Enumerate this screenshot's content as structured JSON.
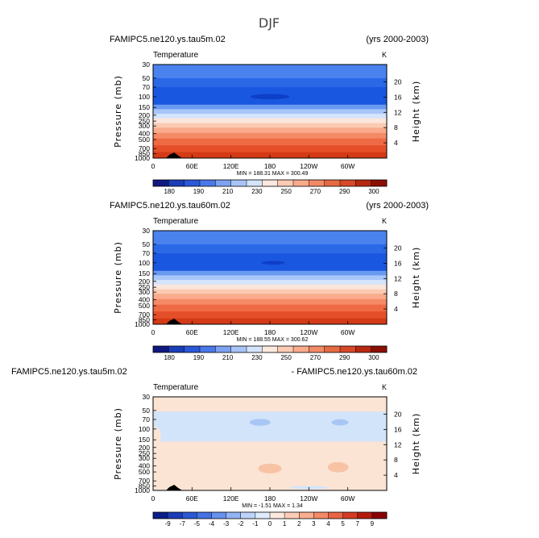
{
  "figure_title": "DJF",
  "panels": [
    {
      "left_title": "FAMIPC5.ne120.ys.tau5m.02",
      "right_title": "(yrs 2000-2003)",
      "var_label": "Temperature",
      "units": "K",
      "stats": "MIN = 188.31   MAX = 300.49"
    },
    {
      "left_title": "FAMIPC5.ne120.ys.tau60m.02",
      "right_title": "(yrs 2000-2003)",
      "var_label": "Temperature",
      "units": "K",
      "stats": "MIN = 188.55   MAX = 300.62"
    },
    {
      "left_title": "FAMIPC5.ne120.ys.tau5m.02",
      "right_title": "- FAMIPC5.ne120.ys.tau60m.02",
      "var_label": "Temperature",
      "units": "K",
      "stats": "MIN = -1.51   MAX = 1.34"
    }
  ],
  "chart_data": [
    {
      "type": "heatmap",
      "title": "FAMIPC5.ne120.ys.tau5m.02",
      "xlabel": "",
      "ylabel": "Pressure (mb)",
      "ylabel_right": "Height (km)",
      "x_ticks": [
        "0",
        "60E",
        "120E",
        "180",
        "120W",
        "60W"
      ],
      "x_tick_lon": [
        0,
        60,
        120,
        180,
        240,
        300
      ],
      "xlim": [
        0,
        360
      ],
      "y_ticks": [
        "30",
        "50",
        "70",
        "100",
        "150",
        "200",
        "250",
        "300",
        "400",
        "500",
        "700",
        "850",
        "1000"
      ],
      "y_tick_p": [
        30,
        50,
        70,
        100,
        150,
        200,
        250,
        300,
        400,
        500,
        700,
        850,
        1000
      ],
      "ylim_mb": [
        1000,
        30
      ],
      "right_ticks": [
        "4",
        "8",
        "12",
        "16",
        "20"
      ],
      "right_tick_km": [
        4,
        8,
        12,
        16,
        20
      ],
      "levels": [
        180,
        190,
        210,
        230,
        250,
        270,
        290,
        300
      ],
      "level_labels": [
        "180",
        "190",
        "210",
        "230",
        "250",
        "270",
        "290",
        "300"
      ],
      "min": 188.31,
      "max": 300.49,
      "bands": [
        {
          "p_top": 30,
          "p_bot": 50,
          "color": "#4a82ee"
        },
        {
          "p_top": 50,
          "p_bot": 70,
          "color": "#2a68e6"
        },
        {
          "p_top": 70,
          "p_bot": 135,
          "color": "#1a57e0"
        },
        {
          "p_top": 135,
          "p_bot": 160,
          "color": "#6a9af0"
        },
        {
          "p_top": 160,
          "p_bot": 190,
          "color": "#a8c6f8"
        },
        {
          "p_top": 190,
          "p_bot": 225,
          "color": "#d4e4fc"
        },
        {
          "p_top": 225,
          "p_bot": 270,
          "color": "#fbe6dc"
        },
        {
          "p_top": 270,
          "p_bot": 320,
          "color": "#fbcab2"
        },
        {
          "p_top": 320,
          "p_bot": 390,
          "color": "#f9ab8c"
        },
        {
          "p_top": 390,
          "p_bot": 480,
          "color": "#f58a66"
        },
        {
          "p_top": 480,
          "p_bot": 620,
          "color": "#ee6a44"
        },
        {
          "p_top": 620,
          "p_bot": 800,
          "color": "#e44f2a"
        },
        {
          "p_top": 800,
          "p_bot": 1000,
          "color": "#d43a16"
        }
      ],
      "features": [
        {
          "lon": 180,
          "p": 100,
          "lon_halfwidth": 30,
          "p_halfrange": 10,
          "color": "#0d3fc8"
        }
      ],
      "topography_lon": [
        20,
        45
      ]
    },
    {
      "type": "heatmap",
      "title": "FAMIPC5.ne120.ys.tau60m.02",
      "xlabel": "",
      "ylabel": "Pressure (mb)",
      "ylabel_right": "Height (km)",
      "x_ticks": [
        "0",
        "60E",
        "120E",
        "180",
        "120W",
        "60W"
      ],
      "x_tick_lon": [
        0,
        60,
        120,
        180,
        240,
        300
      ],
      "xlim": [
        0,
        360
      ],
      "y_ticks": [
        "30",
        "50",
        "70",
        "100",
        "150",
        "200",
        "250",
        "300",
        "400",
        "500",
        "700",
        "850",
        "1000"
      ],
      "y_tick_p": [
        30,
        50,
        70,
        100,
        150,
        200,
        250,
        300,
        400,
        500,
        700,
        850,
        1000
      ],
      "ylim_mb": [
        1000,
        30
      ],
      "right_ticks": [
        "4",
        "8",
        "12",
        "16",
        "20"
      ],
      "right_tick_km": [
        4,
        8,
        12,
        16,
        20
      ],
      "levels": [
        180,
        190,
        210,
        230,
        250,
        270,
        290,
        300
      ],
      "level_labels": [
        "180",
        "190",
        "210",
        "230",
        "250",
        "270",
        "290",
        "300"
      ],
      "min": 188.55,
      "max": 300.62,
      "bands": [
        {
          "p_top": 30,
          "p_bot": 50,
          "color": "#4a82ee"
        },
        {
          "p_top": 50,
          "p_bot": 70,
          "color": "#2a68e6"
        },
        {
          "p_top": 70,
          "p_bot": 135,
          "color": "#1a57e0"
        },
        {
          "p_top": 135,
          "p_bot": 160,
          "color": "#6a9af0"
        },
        {
          "p_top": 160,
          "p_bot": 190,
          "color": "#a8c6f8"
        },
        {
          "p_top": 190,
          "p_bot": 225,
          "color": "#d4e4fc"
        },
        {
          "p_top": 225,
          "p_bot": 270,
          "color": "#fbe6dc"
        },
        {
          "p_top": 270,
          "p_bot": 320,
          "color": "#fbcab2"
        },
        {
          "p_top": 320,
          "p_bot": 390,
          "color": "#f9ab8c"
        },
        {
          "p_top": 390,
          "p_bot": 480,
          "color": "#f58a66"
        },
        {
          "p_top": 480,
          "p_bot": 620,
          "color": "#ee6a44"
        },
        {
          "p_top": 620,
          "p_bot": 800,
          "color": "#e44f2a"
        },
        {
          "p_top": 800,
          "p_bot": 1000,
          "color": "#d43a16"
        }
      ],
      "features": [
        {
          "lon": 185,
          "p": 100,
          "lon_halfwidth": 18,
          "p_halfrange": 7,
          "color": "#0d3fc8"
        }
      ],
      "topography_lon": [
        20,
        45
      ]
    },
    {
      "type": "heatmap",
      "title": "FAMIPC5.ne120.ys.tau5m.02 - FAMIPC5.ne120.ys.tau60m.02",
      "xlabel": "",
      "ylabel": "Pressure (mb)",
      "ylabel_right": "Height (km)",
      "x_ticks": [
        "0",
        "60E",
        "120E",
        "180",
        "120W",
        "60W"
      ],
      "x_tick_lon": [
        0,
        60,
        120,
        180,
        240,
        300
      ],
      "xlim": [
        0,
        360
      ],
      "y_ticks": [
        "30",
        "50",
        "70",
        "100",
        "150",
        "200",
        "250",
        "300",
        "400",
        "500",
        "700",
        "850",
        "1000"
      ],
      "y_tick_p": [
        30,
        50,
        70,
        100,
        150,
        200,
        250,
        300,
        400,
        500,
        700,
        850,
        1000
      ],
      "ylim_mb": [
        1000,
        30
      ],
      "right_ticks": [
        "4",
        "8",
        "12",
        "16",
        "20"
      ],
      "right_tick_km": [
        4,
        8,
        12,
        16,
        20
      ],
      "levels": [
        -9,
        -7,
        -5,
        -4,
        -3,
        -2,
        -1,
        0,
        1,
        2,
        3,
        4,
        5,
        7,
        9
      ],
      "level_labels": [
        "-9",
        "-7",
        "-5",
        "-4",
        "-3",
        "-2",
        "-1",
        "0",
        "1",
        "2",
        "3",
        "4",
        "5",
        "7",
        "9"
      ],
      "min": -1.51,
      "max": 1.34,
      "bands": [
        {
          "p_top": 30,
          "p_bot": 52,
          "color": "#fce4d4"
        },
        {
          "p_top": 52,
          "p_bot": 160,
          "color": "#d2e4fa"
        },
        {
          "p_top": 160,
          "p_bot": 730,
          "color": "#fce4d4"
        },
        {
          "p_top": 730,
          "p_bot": 1000,
          "color": "#fce4d4"
        }
      ],
      "features": [
        {
          "lon": 165,
          "p": 78,
          "lon_halfwidth": 16,
          "p_halfrange": 10,
          "color": "#a7c6f3"
        },
        {
          "lon": 288,
          "p": 78,
          "lon_halfwidth": 13,
          "p_halfrange": 9,
          "color": "#a7c6f3"
        },
        {
          "lon": 180,
          "p": 440,
          "lon_halfwidth": 18,
          "p_halfrange": 80,
          "color": "#f7c3a4"
        },
        {
          "lon": 285,
          "p": 420,
          "lon_halfwidth": 16,
          "p_halfrange": 80,
          "color": "#f7c3a4"
        },
        {
          "lon": 0,
          "p": 130,
          "lon_halfwidth": 12,
          "p_halfrange": 45,
          "color": "#fce4d4"
        },
        {
          "lon": 240,
          "p": 900,
          "lon_halfwidth": 30,
          "p_halfrange": 40,
          "color": "#d2e4fa"
        }
      ],
      "topography_lon": [
        20,
        45
      ]
    }
  ],
  "colorbars": [
    {
      "colors": [
        "#101880",
        "#1a3fb8",
        "#2a58d8",
        "#4a78e8",
        "#7ea2f0",
        "#a8c4f6",
        "#d4e4fc",
        "#fde8de",
        "#fccbb4",
        "#f9ab8c",
        "#f28a66",
        "#e66a44",
        "#d64828",
        "#b82810",
        "#8a1004"
      ]
    },
    {
      "colors": [
        "#101880",
        "#1a3fb8",
        "#2a58d8",
        "#4a78e8",
        "#7ea2f0",
        "#a8c4f6",
        "#d4e4fc",
        "#fde8de",
        "#fccbb4",
        "#f9ab8c",
        "#f28a66",
        "#e66a44",
        "#d64828",
        "#b82810",
        "#8a1004"
      ]
    },
    {
      "colors": [
        "#0a1e88",
        "#1c3cb8",
        "#2c58d4",
        "#4472e4",
        "#6692ee",
        "#92b4f4",
        "#bcd4fa",
        "#e0ecfd",
        "#fde9dd",
        "#fccdb6",
        "#f9ad8e",
        "#f38a66",
        "#e86444",
        "#d43c22",
        "#b41a0a",
        "#880004"
      ]
    }
  ]
}
